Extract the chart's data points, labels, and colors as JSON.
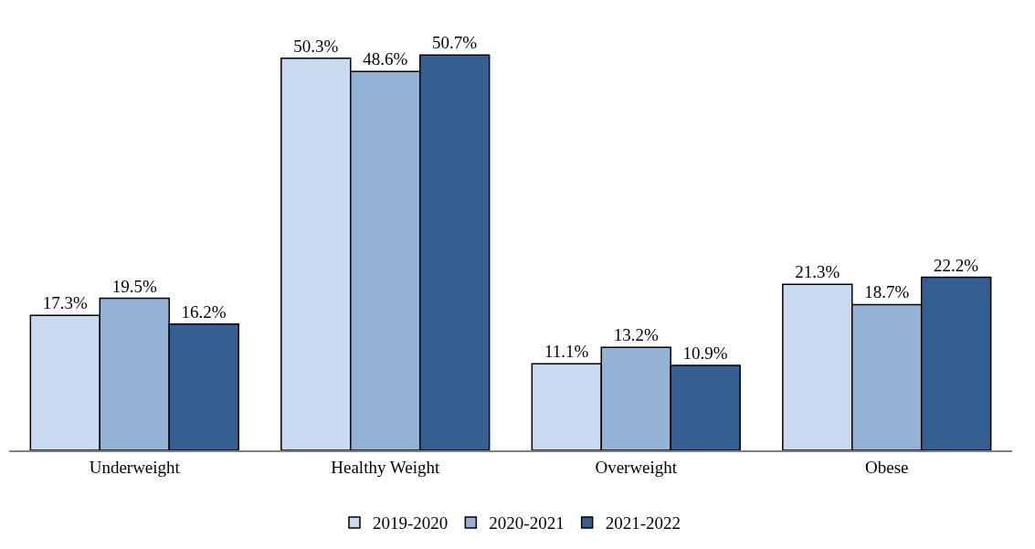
{
  "chart_data": {
    "type": "bar",
    "categories": [
      "Underweight",
      "Healthy Weight",
      "Overweight",
      "Obese"
    ],
    "series": [
      {
        "name": "2019-2020",
        "color": "#c9d9ef",
        "values": [
          17.3,
          50.3,
          11.1,
          21.3
        ],
        "value_labels": [
          "17.3%",
          "50.3%",
          "11.1%",
          "21.3%"
        ]
      },
      {
        "name": "2020-2021",
        "color": "#95b3d7",
        "values": [
          19.5,
          48.6,
          13.2,
          18.7
        ],
        "value_labels": [
          "19.5%",
          "48.6%",
          "13.2%",
          "18.7%"
        ]
      },
      {
        "name": "2021-2022",
        "color": "#355f91",
        "values": [
          16.2,
          50.7,
          10.9,
          22.2
        ],
        "value_labels": [
          "16.2%",
          "50.7%",
          "10.9%",
          "22.2%"
        ]
      }
    ],
    "legend": "bottom"
  }
}
